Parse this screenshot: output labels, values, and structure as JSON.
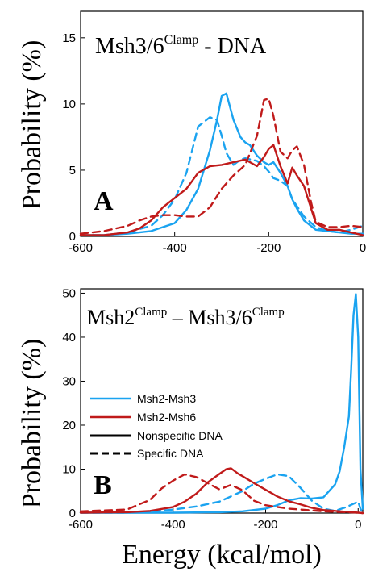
{
  "colors": {
    "msh3": "#1aa3f0",
    "msh6": "#c01a1a",
    "axis": "#000000"
  },
  "shared": {
    "ylabel": "Probability (%)",
    "xlabel": "Energy (kcal/mol)"
  },
  "chart_data": [
    {
      "type": "line",
      "panel_letter": "A",
      "title_main": "Msh3/6",
      "title_sup": "Clamp",
      "title_tail": " - DNA",
      "xlim": [
        -600,
        0
      ],
      "ylim": [
        0,
        17
      ],
      "xticks": [
        -600,
        -400,
        -200,
        0
      ],
      "xtick_labels": [
        "-600",
        "-400",
        "-200",
        "0"
      ],
      "yticks": [
        0,
        5,
        10,
        15
      ],
      "ytick_labels": [
        "0",
        "5",
        "10",
        "15"
      ],
      "series": [
        {
          "group": "Msh2-Msh3",
          "dna": "Nonspecific DNA",
          "color": "#1aa3f0",
          "dash": false,
          "x": [
            -600,
            -550,
            -500,
            -450,
            -400,
            -375,
            -350,
            -325,
            -310,
            -300,
            -290,
            -275,
            -260,
            -250,
            -240,
            -225,
            -210,
            -200,
            -190,
            -175,
            -160,
            -150,
            -140,
            -125,
            -100,
            -75,
            -50,
            -25,
            0
          ],
          "y": [
            0.1,
            0.1,
            0.2,
            0.4,
            1.0,
            2.0,
            3.6,
            6.5,
            8.8,
            10.6,
            10.8,
            8.8,
            7.5,
            7.1,
            6.9,
            6.1,
            5.6,
            5.4,
            5.6,
            4.8,
            3.8,
            2.8,
            2.1,
            1.2,
            0.5,
            0.4,
            0.3,
            0.2,
            0.2
          ]
        },
        {
          "group": "Msh2-Msh3",
          "dna": "Specific DNA",
          "color": "#1aa3f0",
          "dash": true,
          "x": [
            -600,
            -550,
            -500,
            -450,
            -425,
            -400,
            -375,
            -350,
            -325,
            -310,
            -300,
            -290,
            -275,
            -260,
            -250,
            -225,
            -210,
            -200,
            -190,
            -175,
            -160,
            -150,
            -125,
            -100,
            -75,
            -50,
            -25,
            0
          ],
          "y": [
            0.1,
            0.1,
            0.3,
            0.8,
            1.6,
            2.8,
            4.8,
            8.3,
            9.0,
            8.8,
            7.6,
            6.3,
            5.4,
            5.8,
            5.9,
            5.7,
            5.3,
            4.9,
            4.4,
            4.2,
            3.8,
            2.8,
            1.5,
            0.7,
            0.4,
            0.3,
            0.5,
            0.8
          ]
        },
        {
          "group": "Msh2-Msh6",
          "dna": "Nonspecific DNA",
          "color": "#c01a1a",
          "dash": false,
          "x": [
            -600,
            -550,
            -500,
            -475,
            -450,
            -425,
            -400,
            -375,
            -350,
            -325,
            -300,
            -275,
            -250,
            -225,
            -210,
            -200,
            -190,
            -175,
            -160,
            -150,
            -140,
            -125,
            -100,
            -75,
            -50,
            -25,
            0
          ],
          "y": [
            0.1,
            0.1,
            0.3,
            0.6,
            1.2,
            2.2,
            2.9,
            3.6,
            4.8,
            5.3,
            5.4,
            5.6,
            5.8,
            5.3,
            6.0,
            6.6,
            6.9,
            5.3,
            4.0,
            5.2,
            4.6,
            3.8,
            1.0,
            0.5,
            0.5,
            0.3,
            0.1
          ]
        },
        {
          "group": "Msh2-Msh6",
          "dna": "Specific DNA",
          "color": "#c01a1a",
          "dash": true,
          "x": [
            -600,
            -550,
            -500,
            -475,
            -450,
            -425,
            -400,
            -375,
            -350,
            -325,
            -300,
            -275,
            -250,
            -225,
            -210,
            -200,
            -190,
            -175,
            -160,
            -150,
            -140,
            -125,
            -110,
            -100,
            -75,
            -50,
            -25,
            0
          ],
          "y": [
            0.2,
            0.4,
            0.8,
            1.2,
            1.5,
            1.6,
            1.6,
            1.5,
            1.5,
            2.2,
            3.6,
            4.6,
            5.4,
            7.6,
            10.3,
            10.4,
            9.1,
            6.4,
            5.9,
            6.5,
            6.8,
            5.4,
            2.6,
            1.1,
            0.7,
            0.7,
            0.8,
            0.7
          ]
        }
      ]
    },
    {
      "type": "line",
      "panel_letter": "B",
      "title_left_main": "Msh2",
      "title_left_sup": "Clamp",
      "title_mid": " – Msh3/6",
      "title_right_sup": "Clamp",
      "xlim": [
        -600,
        10
      ],
      "ylim": [
        0,
        51
      ],
      "xticks": [
        -600,
        -400,
        -200,
        0
      ],
      "xtick_labels": [
        "-600",
        "-400",
        "-200",
        "0"
      ],
      "yticks": [
        0,
        10,
        20,
        30,
        40,
        50
      ],
      "ytick_labels": [
        "0",
        "10",
        "20",
        "30",
        "40",
        "50"
      ],
      "legend": {
        "placement": "middle-left",
        "entries": [
          "Msh2-Msh3",
          "Msh2-Msh6",
          "Nonspecific DNA",
          "Specific DNA"
        ]
      },
      "series": [
        {
          "group": "Msh2-Msh3",
          "dna": "Nonspecific DNA",
          "color": "#1aa3f0",
          "dash": false,
          "x": [
            -600,
            -500,
            -400,
            -300,
            -250,
            -200,
            -175,
            -150,
            -125,
            -100,
            -75,
            -50,
            -40,
            -30,
            -20,
            -15,
            -10,
            -5,
            0,
            5,
            10
          ],
          "y": [
            0.1,
            0.1,
            0.1,
            0.2,
            0.4,
            1.0,
            1.8,
            2.9,
            3.4,
            3.3,
            3.6,
            6.5,
            9.5,
            15,
            22,
            33,
            45,
            49.8,
            40,
            10,
            1
          ]
        },
        {
          "group": "Msh2-Msh3",
          "dna": "Specific DNA",
          "color": "#1aa3f0",
          "dash": true,
          "x": [
            -600,
            -500,
            -450,
            -400,
            -350,
            -300,
            -275,
            -250,
            -225,
            -200,
            -175,
            -150,
            -125,
            -100,
            -75,
            -50,
            -25,
            0,
            5,
            10
          ],
          "y": [
            0.1,
            0.1,
            0.3,
            0.8,
            1.5,
            2.6,
            3.8,
            5.0,
            6.7,
            7.8,
            8.8,
            8.4,
            5.8,
            2.8,
            1.0,
            0.5,
            1.4,
            2.6,
            1,
            0
          ]
        },
        {
          "group": "Msh2-Msh6",
          "dna": "Nonspecific DNA",
          "color": "#c01a1a",
          "dash": false,
          "x": [
            -600,
            -500,
            -450,
            -400,
            -375,
            -350,
            -325,
            -300,
            -285,
            -275,
            -260,
            -250,
            -225,
            -200,
            -175,
            -150,
            -125,
            -100,
            -75,
            -50,
            -25,
            0,
            10
          ],
          "y": [
            0.1,
            0.2,
            0.5,
            1.4,
            2.6,
            4.4,
            7.0,
            8.9,
            10.0,
            10.2,
            9.0,
            8.4,
            6.8,
            5.3,
            3.8,
            2.7,
            2.0,
            1.2,
            0.7,
            0.5,
            0.3,
            0.1,
            0
          ]
        },
        {
          "group": "Msh2-Msh6",
          "dna": "Specific DNA",
          "color": "#c01a1a",
          "dash": true,
          "x": [
            -600,
            -500,
            -450,
            -425,
            -400,
            -375,
            -350,
            -325,
            -300,
            -275,
            -250,
            -225,
            -200,
            -175,
            -150,
            -125,
            -100,
            -75,
            -50,
            -25,
            0,
            10
          ],
          "y": [
            0.4,
            0.8,
            3.0,
            5.6,
            7.4,
            8.8,
            8.2,
            6.8,
            5.4,
            6.4,
            5.2,
            2.8,
            1.8,
            1.4,
            1.0,
            0.8,
            0.6,
            0.4,
            0.3,
            0.2,
            0.1,
            0
          ]
        }
      ]
    }
  ]
}
